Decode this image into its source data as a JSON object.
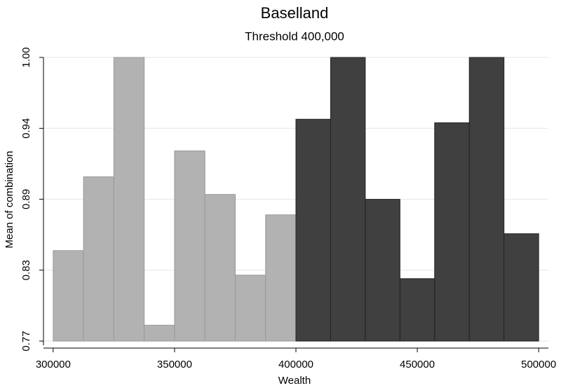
{
  "chart_data": {
    "type": "histogram",
    "title": "Baselland",
    "subtitle": "Threshold 400,000",
    "x_label": "Wealth",
    "y_label": "Mean of combination",
    "series": [
      {
        "color": "#b2b2b2",
        "bins": [
          300000,
          312500,
          325000,
          337500,
          350000,
          362500,
          375000,
          387500,
          400000
        ],
        "values": [
          0.8456,
          0.9046,
          1.0,
          0.786,
          0.9253,
          0.8905,
          0.826,
          0.8742
        ]
      },
      {
        "color": "#404040",
        "bins": [
          400000,
          414286,
          428571,
          442857,
          457143,
          471429,
          485714,
          500000
        ],
        "values": [
          0.9506,
          1.0,
          0.8866,
          0.8232,
          0.9478,
          1.0,
          0.8591
        ]
      }
    ],
    "xlim": [
      296000,
      504000
    ],
    "ylim": [
      0.7733,
      1.0
    ],
    "xticks": [
      300000,
      350000,
      400000,
      450000,
      500000
    ],
    "yticks": [
      {
        "value": 0.7733,
        "label": "0.77"
      },
      {
        "value": 0.83,
        "label": "0.83"
      },
      {
        "value": 0.8867,
        "label": "0.89"
      },
      {
        "value": 0.9433,
        "label": "0.94"
      },
      {
        "value": 1.0,
        "label": "1.00"
      }
    ],
    "grid": true
  }
}
